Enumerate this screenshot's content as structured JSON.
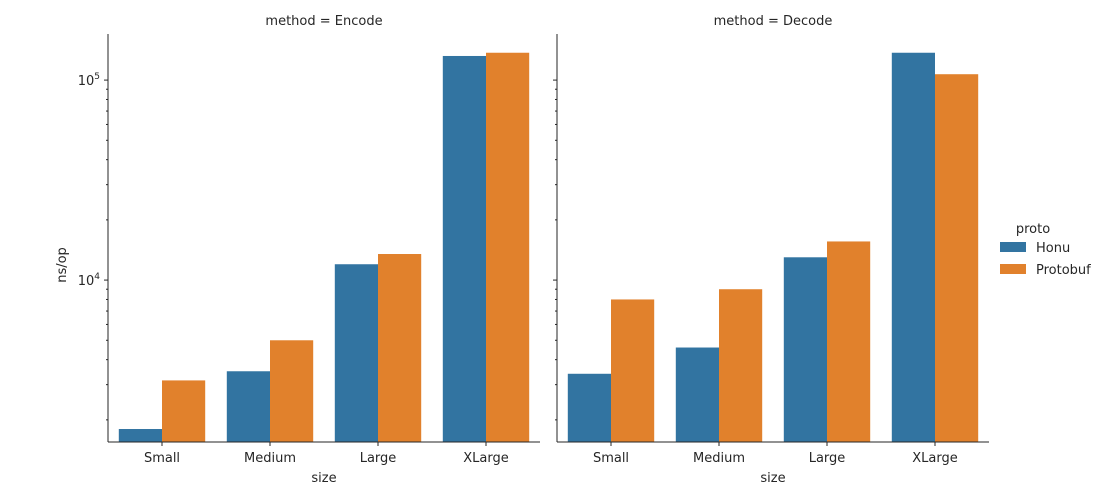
{
  "chart_data": {
    "type": "bar",
    "facet_label": "method",
    "facets": [
      {
        "method": "Encode",
        "title": "method = Encode",
        "categories": [
          "Small",
          "Medium",
          "Large",
          "XLarge"
        ],
        "series": [
          {
            "name": "Honu",
            "values": [
              1800,
              3500,
              12000,
              132000
            ]
          },
          {
            "name": "Protobuf",
            "values": [
              3150,
              5000,
              13500,
              137000
            ]
          }
        ]
      },
      {
        "method": "Decode",
        "title": "method = Decode",
        "categories": [
          "Small",
          "Medium",
          "Large",
          "XLarge"
        ],
        "series": [
          {
            "name": "Honu",
            "values": [
              3400,
              4600,
              13000,
              137000
            ]
          },
          {
            "name": "Protobuf",
            "values": [
              8000,
              9000,
              15600,
              107000
            ]
          }
        ]
      }
    ],
    "xlabel": "size",
    "ylabel": "ns/op",
    "yscale": "log",
    "ylim": [
      1550,
      170000
    ],
    "y_major_ticks": [
      {
        "value": 10000,
        "base": "10",
        "exp": "4"
      },
      {
        "value": 100000,
        "base": "10",
        "exp": "5"
      }
    ],
    "grid": false,
    "legend": {
      "title": "proto",
      "placement": "right",
      "entries": [
        {
          "name": "Honu",
          "color": "#3274a1"
        },
        {
          "name": "Protobuf",
          "color": "#e1812c"
        }
      ]
    },
    "colors": {
      "Honu": "#3274a1",
      "Protobuf": "#e1812c"
    }
  }
}
